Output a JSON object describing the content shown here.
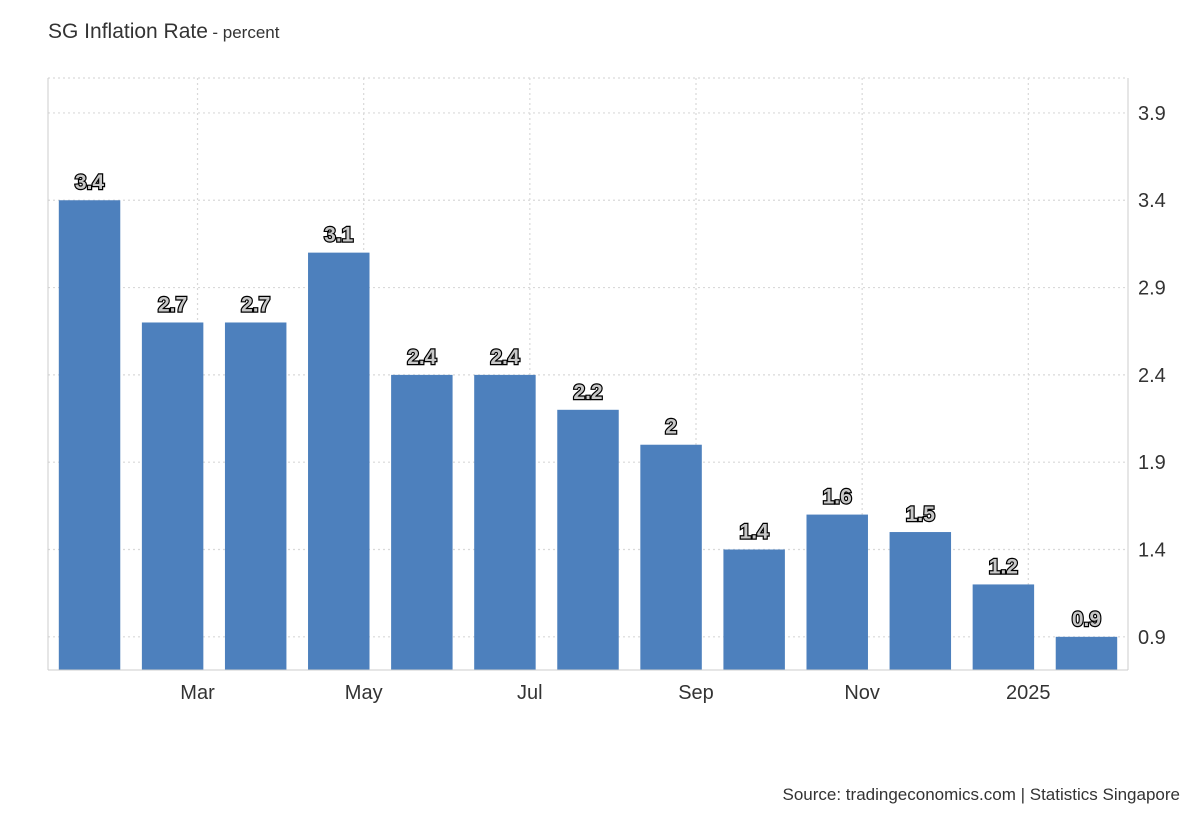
{
  "header": {
    "title": "SG Inflation Rate",
    "subtitle": "- percent"
  },
  "footer": {
    "source": "Source: tradingeconomics.com | Statistics Singapore"
  },
  "colors": {
    "bar": "#4d80bd",
    "grid": "#d9d9d9",
    "axis": "#cccccc",
    "text": "#333333"
  },
  "chart_data": {
    "type": "bar",
    "title": "SG Inflation Rate",
    "subtitle": "- percent",
    "values": [
      3.4,
      2.7,
      2.7,
      3.1,
      2.4,
      2.4,
      2.2,
      2,
      1.4,
      1.6,
      1.5,
      1.2,
      0.9
    ],
    "data_labels": [
      "3.4",
      "2.7",
      "2.7",
      "3.1",
      "2.4",
      "2.4",
      "2.2",
      "2",
      "1.4",
      "1.6",
      "1.5",
      "1.2",
      "0.9"
    ],
    "x_tick_labels": [
      {
        "bar_index": 1.3,
        "label": "Mar"
      },
      {
        "bar_index": 3.3,
        "label": "May"
      },
      {
        "bar_index": 5.3,
        "label": "Jul"
      },
      {
        "bar_index": 7.3,
        "label": "Sep"
      },
      {
        "bar_index": 9.3,
        "label": "Nov"
      },
      {
        "bar_index": 11.3,
        "label": "2025"
      }
    ],
    "y_ticks": [
      0.9,
      1.4,
      1.9,
      2.4,
      2.9,
      3.4,
      3.9
    ],
    "y_tick_labels": [
      "0.9",
      "1.4",
      "1.9",
      "2.4",
      "2.9",
      "3.4",
      "3.9"
    ],
    "y_axis_position": "right",
    "ylim": [
      0.71,
      4.1
    ],
    "grid": true,
    "legend": "none"
  }
}
